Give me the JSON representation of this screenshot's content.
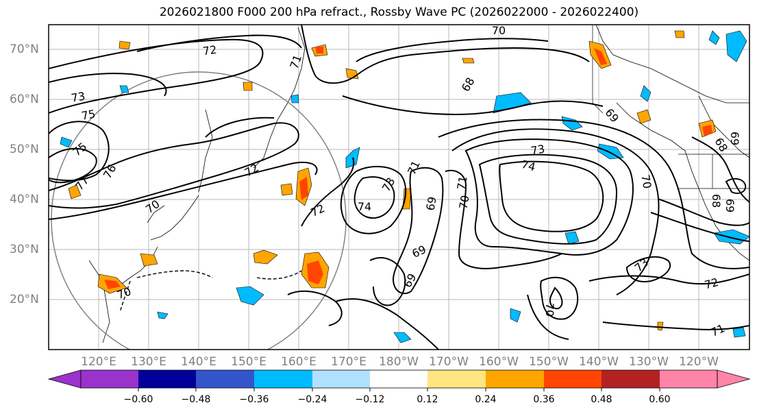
{
  "title": "2026021800 F000 200 hPa refract., Rossby Wave PC (2026022000 - 2026022400)",
  "lat_labels": [
    "70°N",
    "60°N",
    "50°N",
    "40°N",
    "30°N",
    "20°N"
  ],
  "lon_labels": [
    "120°E",
    "130°E",
    "140°E",
    "150°E",
    "160°E",
    "170°E",
    "180°W",
    "170°W",
    "160°W",
    "150°W",
    "140°W",
    "130°W",
    "120°W"
  ],
  "contour_labels": [
    "70",
    "72",
    "71",
    "68",
    "73",
    "75",
    "75",
    "76",
    "77",
    "72",
    "72",
    "74",
    "73",
    "71",
    "70",
    "69",
    "69",
    "69",
    "70",
    "71",
    "73",
    "74",
    "70",
    "69",
    "68",
    "69",
    "73",
    "72",
    "71",
    "70",
    "70",
    "69",
    "68"
  ],
  "colorbar": {
    "ticks": [
      "−0.60",
      "−0.48",
      "−0.36",
      "−0.24",
      "−0.12",
      "0.12",
      "0.24",
      "0.36",
      "0.48",
      "0.60"
    ],
    "colors": [
      "#9933cc",
      "#000099",
      "#3355cc",
      "#00bbff",
      "#b0e0ff",
      "#ffffff",
      "#ffe680",
      "#ffa500",
      "#ff4500",
      "#b22222",
      "#ff85a8"
    ]
  },
  "colors": {
    "contour": "#000000",
    "gridline": "#999999",
    "circle": "#808080",
    "negative_fill": "#00bbff",
    "positive_fill": "#ffa500",
    "strong_positive_fill": "#ff4500"
  }
}
